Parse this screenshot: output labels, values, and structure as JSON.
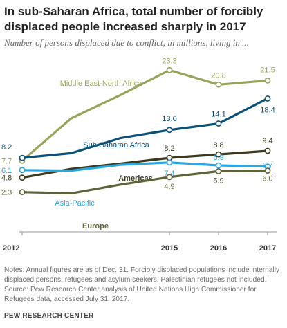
{
  "title": "In sub-Saharan Africa, total number of forcibly displaced people increased sharply in 2017",
  "subtitle": "Number of persons displaced due to conflict, in millions, living in ...",
  "notes": "Notes: Annual figures are as of Dec. 31. Forcibly displaced populations include internally displaced persons, refugees and asylum seekers. Palestinian refugees not included.",
  "source": "Source: Pew Research Center analysis of United Nations High Commissioner for Refugees data, accessed July 31, 2017.",
  "brand": "PEW RESEARCH CENTER",
  "chart_data": {
    "type": "line",
    "x": [
      2012,
      2013,
      2014,
      2015,
      2016,
      2017
    ],
    "x_tick_labels": [
      "2012",
      "",
      "",
      "2015",
      "2016",
      "2017"
    ],
    "ylim": [
      0,
      25
    ],
    "grid": false,
    "series": [
      {
        "name": "Middle East-North Africa",
        "color": "#9aa35c",
        "values": [
          7.7,
          15.0,
          19.0,
          23.3,
          20.8,
          21.5
        ],
        "labels": [
          "7.7",
          "",
          "",
          "23.3",
          "20.8",
          "21.5"
        ]
      },
      {
        "name": "Sub-Saharan Africa",
        "color": "#0b5078",
        "values": [
          8.2,
          9.0,
          11.6,
          13.0,
          14.1,
          18.4
        ],
        "labels": [
          "8.2",
          "",
          "",
          "13.0",
          "14.1",
          "18.4"
        ]
      },
      {
        "name": "Americas",
        "color": "#3b3a1e",
        "values": [
          4.8,
          6.3,
          7.2,
          8.2,
          8.8,
          9.4
        ],
        "labels": [
          "4.8",
          "",
          "",
          "8.2",
          "8.8",
          "9.4"
        ]
      },
      {
        "name": "Asia-Pacific",
        "color": "#2ba6e1",
        "values": [
          6.1,
          6.0,
          7.0,
          7.4,
          6.9,
          6.7
        ],
        "labels": [
          "6.1",
          "",
          "",
          "7.4",
          "6.9",
          "6.7"
        ]
      },
      {
        "name": "Europe",
        "color": "#5e6339",
        "values": [
          2.3,
          2.1,
          3.6,
          4.9,
          5.9,
          6.0
        ],
        "labels": [
          "2.3",
          "",
          "",
          "4.9",
          "5.9",
          "6.0"
        ]
      }
    ]
  }
}
